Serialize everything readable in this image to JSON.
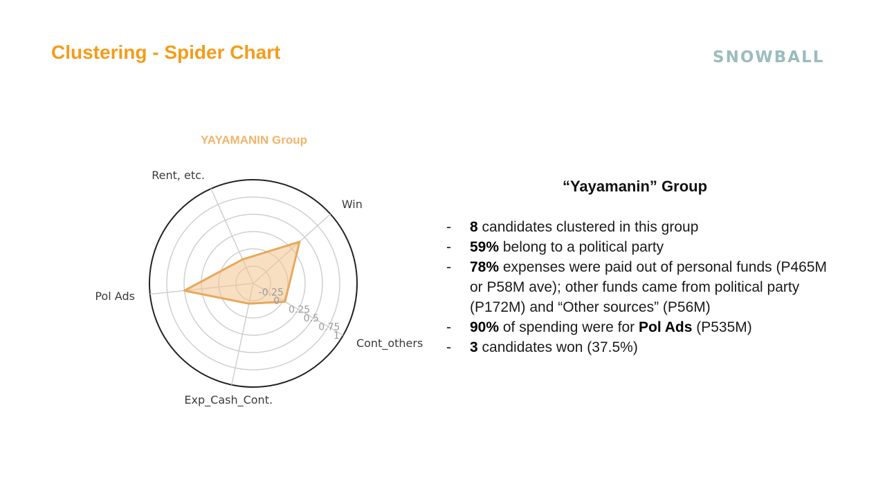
{
  "slide": {
    "title": "Clustering - Spider Chart",
    "brand": "SNOWBALL"
  },
  "chart_data": {
    "type": "radar",
    "title": "YAYAMANIN Group",
    "axes": [
      "Cont_others",
      "Exp_Cash_Cont.",
      "Pol Ads",
      "Rent, etc.",
      "Win"
    ],
    "radial_ticks": [
      "-0.25",
      "0",
      "0.25",
      "0.5",
      "0.75",
      "1"
    ],
    "rlim": [
      -0.5,
      1.0
    ],
    "series": [
      {
        "values": [
          0.03,
          -0.2,
          0.5,
          -0.12,
          0.4
        ]
      }
    ],
    "fill_color": "#f2c58f",
    "line_color": "#e8a85a",
    "grid": true
  },
  "panel": {
    "heading": "“Yayamanin” Group",
    "bullets": [
      {
        "dash": "-",
        "bold": "8",
        "text": " candidates clustered in this group"
      },
      {
        "dash": "-",
        "bold": "59%",
        "text": " belong to a political party"
      },
      {
        "dash": "-",
        "bold": "78%",
        "text": " expenses were paid out of personal funds (P465M or P58M ave); other funds came from political party (P172M) and “Other sources” (P56M)"
      },
      {
        "dash": "-",
        "bold": "90%",
        "text": " of spending were for ",
        "bold2": "Pol Ads",
        "text2": " (P535M)"
      },
      {
        "dash": "-",
        "bold": "3",
        "text": " candidates won (37.5%)"
      }
    ]
  }
}
